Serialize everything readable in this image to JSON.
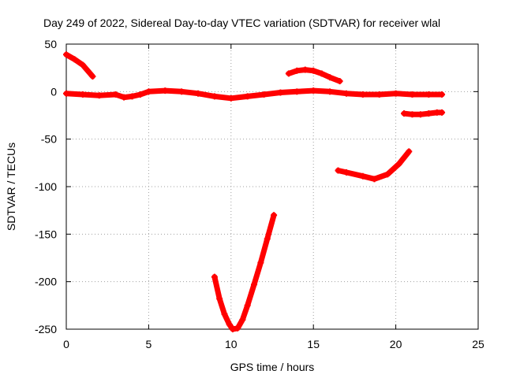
{
  "chart_data": {
    "type": "scatter",
    "title": "Day 249 of 2022, Sidereal Day-to-day VTEC variation (SDTVAR) for receiver wlal",
    "xlabel": "GPS time / hours",
    "ylabel": "SDTVAR / TECUs",
    "xlim": [
      0,
      25
    ],
    "ylim": [
      -250,
      50
    ],
    "x_ticks": [
      0,
      5,
      10,
      15,
      20,
      25
    ],
    "y_ticks": [
      50,
      0,
      -50,
      -100,
      -150,
      -200,
      -250
    ],
    "grid": true,
    "legend": "none",
    "color": "#ff0000",
    "series": [
      {
        "x": [
          0,
          0.5,
          1.0,
          1.6
        ],
        "y": [
          39,
          34,
          28,
          16
        ]
      },
      {
        "x": [
          0,
          1,
          2,
          3,
          3.5,
          4,
          4.5,
          5,
          6,
          7,
          8,
          9,
          10,
          11,
          12,
          13,
          14,
          15,
          16,
          17,
          18,
          19,
          20,
          21,
          22,
          22.8
        ],
        "y": [
          -2,
          -3,
          -4,
          -3,
          -6,
          -5,
          -3,
          0,
          1,
          0,
          -2,
          -5,
          -7,
          -5,
          -3,
          -1,
          0,
          1,
          0,
          -2,
          -3,
          -3,
          -2,
          -3,
          -3,
          -3
        ]
      },
      {
        "x": [
          13.5,
          14,
          14.5,
          15,
          15.5,
          16,
          16.6
        ],
        "y": [
          19,
          22,
          23,
          22,
          19,
          15,
          11
        ]
      },
      {
        "x": [
          20.5,
          21,
          21.5,
          22,
          22.5,
          22.8
        ],
        "y": [
          -23,
          -24,
          -24,
          -23,
          -22,
          -22
        ]
      },
      {
        "x": [
          16.5,
          17,
          18,
          18.7,
          19.5,
          20.2,
          20.8
        ],
        "y": [
          -83,
          -85,
          -89,
          -92,
          -87,
          -76,
          -63
        ]
      },
      {
        "x": [
          9.0,
          9.3,
          9.6,
          9.9,
          10.1,
          10.4,
          10.7,
          11.0,
          11.4,
          11.8,
          12.2,
          12.6
        ],
        "y": [
          -195,
          -218,
          -234,
          -245,
          -250,
          -249,
          -240,
          -225,
          -203,
          -180,
          -155,
          -130
        ]
      }
    ]
  }
}
